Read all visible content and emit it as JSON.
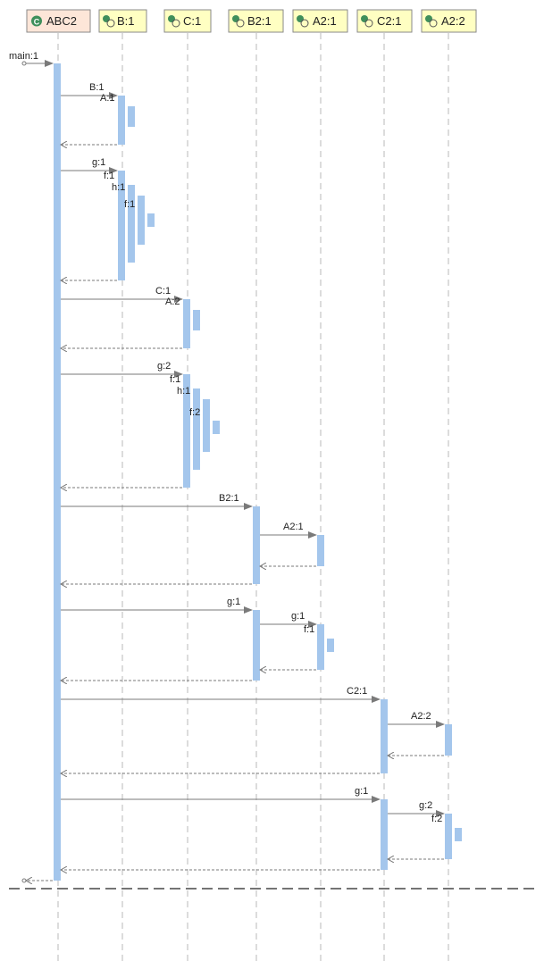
{
  "lifelines": [
    {
      "label": "ABC2",
      "kind": "class",
      "icon": "class-icon"
    },
    {
      "label": "B:1",
      "kind": "instance",
      "icon": "instance-icon"
    },
    {
      "label": "C:1",
      "kind": "instance",
      "icon": "instance-icon"
    },
    {
      "label": "B2:1",
      "kind": "instance",
      "icon": "instance-icon"
    },
    {
      "label": "A2:1",
      "kind": "instance",
      "icon": "instance-icon"
    },
    {
      "label": "C2:1",
      "kind": "instance",
      "icon": "instance-icon"
    },
    {
      "label": "A2:2",
      "kind": "instance",
      "icon": "instance-icon"
    }
  ],
  "entry": {
    "label": "main:1"
  },
  "messages": [
    {
      "label": "B:1"
    },
    {
      "label": "A:1"
    },
    {
      "label": "g:1"
    },
    {
      "label": "f:1"
    },
    {
      "label": "h:1"
    },
    {
      "label": "f:1"
    },
    {
      "label": "C:1"
    },
    {
      "label": "A:2"
    },
    {
      "label": "g:2"
    },
    {
      "label": "f:1"
    },
    {
      "label": "h:1"
    },
    {
      "label": "f:2"
    },
    {
      "label": "B2:1"
    },
    {
      "label": "A2:1"
    },
    {
      "label": "g:1"
    },
    {
      "label": "g:1"
    },
    {
      "label": "f:1"
    },
    {
      "label": "C2:1"
    },
    {
      "label": "A2:2"
    },
    {
      "label": "g:1"
    },
    {
      "label": "g:2"
    },
    {
      "label": "f:2"
    }
  ],
  "colors": {
    "class_box": "#fde6d8",
    "instance_box": "#ffffc2",
    "activation": "#a4c6ec",
    "icon_green": "#3f8f5b"
  }
}
